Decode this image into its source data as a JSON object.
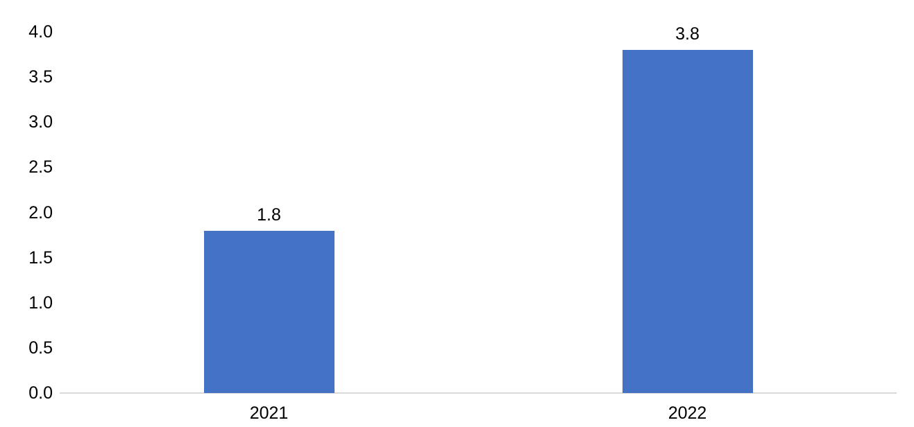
{
  "chart_data": {
    "type": "bar",
    "categories": [
      "2021",
      "2022"
    ],
    "values": [
      1.8,
      3.8
    ],
    "data_labels": [
      "1.8",
      "3.8"
    ],
    "title": "",
    "xlabel": "",
    "ylabel": "",
    "ylim": [
      0,
      4
    ],
    "ytick_labels": [
      "0.0",
      "0.5",
      "1.0",
      "1.5",
      "2.0",
      "2.5",
      "3.0",
      "3.5",
      "4.0"
    ],
    "ytick_values": [
      0.0,
      0.5,
      1.0,
      1.5,
      2.0,
      2.5,
      3.0,
      3.5,
      4.0
    ],
    "grid": false,
    "legend": false,
    "bar_color": "#4472C4",
    "axis_line_color": "#D9D9D9",
    "text_color": "#000000",
    "background_color": "#FFFFFF"
  }
}
